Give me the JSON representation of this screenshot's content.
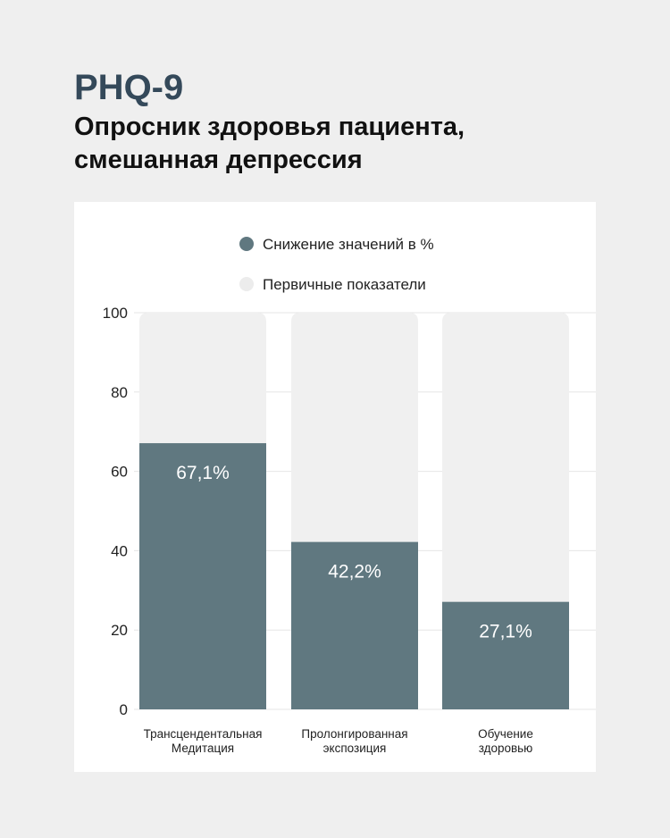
{
  "header": {
    "title": "PHQ-9",
    "subtitle_line1": "Опросник здоровья пациента,",
    "subtitle_line2": "смешанная депрессия"
  },
  "colors": {
    "reduction": "#607880",
    "baseline": "#f0f0f0",
    "title": "#34495a"
  },
  "chart_data": {
    "type": "bar",
    "stacked_overlay": true,
    "categories": [
      [
        "Трансцендентальная",
        "Медитация"
      ],
      [
        "Пролонгированная",
        "экспозиция"
      ],
      [
        "Обучение",
        "здоровью"
      ]
    ],
    "series": [
      {
        "name": "Снижение значений в %",
        "values": [
          67.1,
          42.2,
          27.1
        ],
        "labels": [
          "67,1%",
          "42,2%",
          "27,1%"
        ]
      },
      {
        "name": "Первичные показатели",
        "values": [
          100,
          100,
          100
        ]
      }
    ],
    "ylim": [
      0,
      100
    ],
    "yticks": [
      0,
      20,
      40,
      60,
      80,
      100
    ],
    "grid": true,
    "legend": "top-center"
  }
}
